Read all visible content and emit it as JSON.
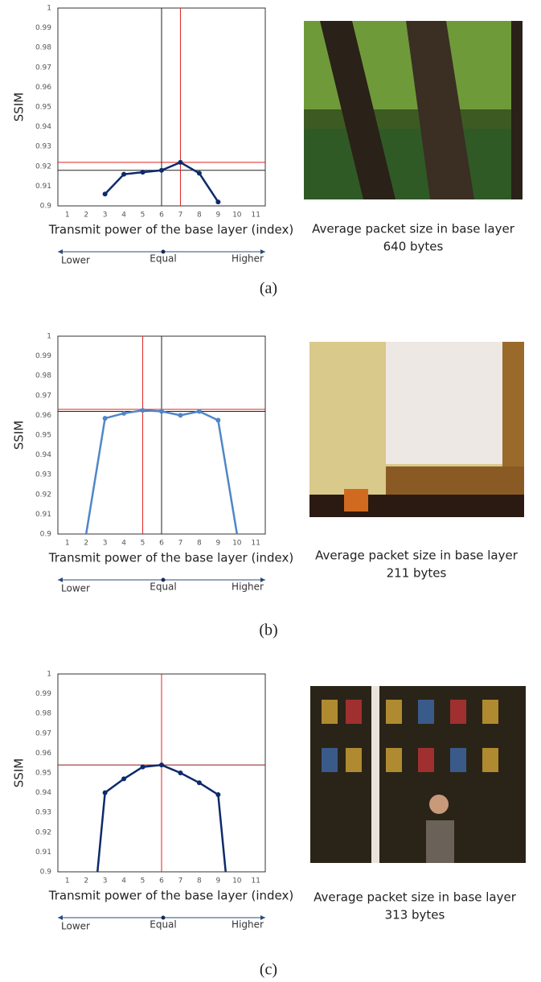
{
  "chart_data": [
    {
      "type": "line",
      "panel_label": "(a)",
      "y_label": "SSIM",
      "x_label": "Transmit power of the base layer (index)",
      "scale_labels": [
        "Lower",
        "Equal",
        "Higher"
      ],
      "image_caption": [
        "Average packet size in base layer",
        "640 bytes"
      ],
      "xlim": [
        0.5,
        11.5
      ],
      "xticks": [
        1,
        2,
        3,
        4,
        5,
        6,
        7,
        8,
        9,
        10,
        11
      ],
      "ylim": [
        0.9,
        1
      ],
      "yticks": [
        0.9,
        0.91,
        0.92,
        0.93,
        0.94,
        0.95,
        0.96,
        0.97,
        0.98,
        0.99,
        1
      ],
      "series": [
        {
          "color": "#0d2a6b",
          "x": [
            3,
            4,
            5,
            6,
            7,
            8,
            9
          ],
          "values": [
            0.906,
            0.916,
            0.917,
            0.918,
            0.922,
            0.9165,
            0.902
          ]
        }
      ],
      "hlines": [
        {
          "value": 0.922,
          "color": "#e02020"
        },
        {
          "value": 0.918,
          "color": "#222222"
        }
      ],
      "vlines": [
        {
          "value": 6,
          "color": "#222222"
        },
        {
          "value": 7,
          "color": "#e02020"
        }
      ]
    },
    {
      "type": "line",
      "panel_label": "(b)",
      "y_label": "SSIM",
      "x_label": "Transmit power of the base layer (index)",
      "scale_labels": [
        "Lower",
        "Equal",
        "Higher"
      ],
      "image_caption": [
        "Average packet size in base layer",
        "211 bytes"
      ],
      "xlim": [
        0.5,
        11.5
      ],
      "xticks": [
        1,
        2,
        3,
        4,
        5,
        6,
        7,
        8,
        9,
        10,
        11
      ],
      "ylim": [
        0.9,
        1
      ],
      "yticks": [
        0.9,
        0.91,
        0.92,
        0.93,
        0.94,
        0.95,
        0.96,
        0.97,
        0.98,
        0.99,
        1
      ],
      "series": [
        {
          "color": "#4f86c6",
          "x": [
            2,
            3,
            4,
            5,
            6,
            7,
            8,
            9,
            10
          ],
          "values": [
            0.9,
            0.9585,
            0.961,
            0.9625,
            0.962,
            0.96,
            0.962,
            0.9575,
            0.9
          ]
        }
      ],
      "hlines": [
        {
          "value": 0.963,
          "color": "#e02020"
        },
        {
          "value": 0.962,
          "color": "#222222"
        }
      ],
      "vlines": [
        {
          "value": 5,
          "color": "#e02020"
        },
        {
          "value": 6,
          "color": "#222222"
        }
      ]
    },
    {
      "type": "line",
      "panel_label": "(c)",
      "y_label": "SSIM",
      "x_label": "Transmit power of the base layer (index)",
      "scale_labels": [
        "Lower",
        "Equal",
        "Higher"
      ],
      "image_caption": [
        "Average packet size in base layer",
        "313 bytes"
      ],
      "xlim": [
        0.5,
        11.5
      ],
      "xticks": [
        1,
        2,
        3,
        4,
        5,
        6,
        7,
        8,
        9,
        10,
        11
      ],
      "ylim": [
        0.9,
        1
      ],
      "yticks": [
        0.9,
        0.91,
        0.92,
        0.93,
        0.94,
        0.95,
        0.96,
        0.97,
        0.98,
        0.99,
        1
      ],
      "series": [
        {
          "color": "#0d2a6b",
          "x": [
            2.6,
            3,
            4,
            5,
            6,
            7,
            8,
            9,
            9.4
          ],
          "values": [
            0.9,
            0.94,
            0.947,
            0.953,
            0.954,
            0.95,
            0.945,
            0.939,
            0.9
          ]
        }
      ],
      "hlines": [
        {
          "value": 0.954,
          "color": "#8b1a1a"
        }
      ],
      "vlines": [
        {
          "value": 6,
          "color": "#222222"
        },
        {
          "value": 6,
          "color": "#e02020"
        }
      ]
    }
  ]
}
